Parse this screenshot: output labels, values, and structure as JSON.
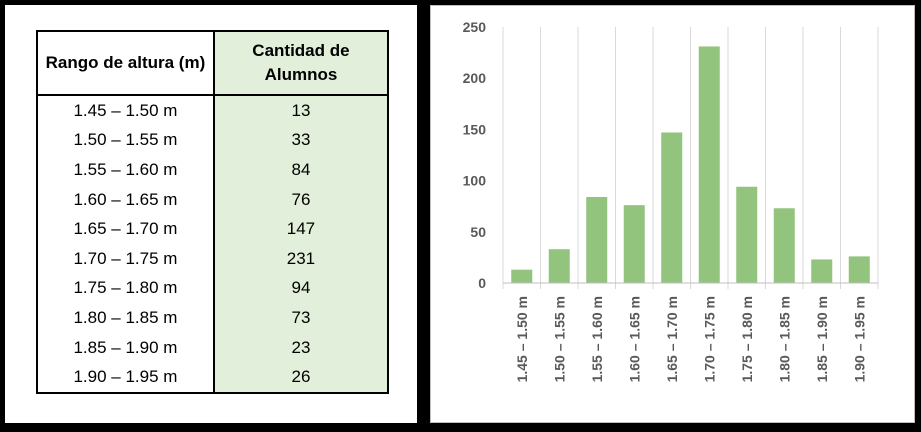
{
  "table": {
    "header_range": "Rango de altura (m)",
    "header_count": "Cantidad de Alumnos",
    "rows": [
      {
        "range": "1.45 – 1.50 m",
        "count": "13"
      },
      {
        "range": "1.50 – 1.55 m",
        "count": "33"
      },
      {
        "range": "1.55 – 1.60 m",
        "count": "84"
      },
      {
        "range": "1.60 – 1.65 m",
        "count": "76"
      },
      {
        "range": "1.65 – 1.70 m",
        "count": "147"
      },
      {
        "range": "1.70 – 1.75 m",
        "count": "231"
      },
      {
        "range": "1.75 – 1.80 m",
        "count": "94"
      },
      {
        "range": "1.80 – 1.85 m",
        "count": "73"
      },
      {
        "range": "1.85 – 1.90 m",
        "count": "23"
      },
      {
        "range": "1.90 – 1.95 m",
        "count": "26"
      }
    ]
  },
  "chart_data": {
    "type": "bar",
    "categories": [
      "1.45 – 1.50 m",
      "1.50 – 1.55 m",
      "1.55 – 1.60 m",
      "1.60 – 1.65 m",
      "1.65 – 1.70 m",
      "1.70 – 1.75 m",
      "1.75 – 1.80 m",
      "1.80 – 1.85 m",
      "1.85 – 1.90 m",
      "1.90 – 1.95 m"
    ],
    "values": [
      13,
      33,
      84,
      76,
      147,
      231,
      94,
      73,
      23,
      26
    ],
    "ylim": [
      0,
      250
    ],
    "yticks": [
      0,
      50,
      100,
      150,
      200,
      250
    ],
    "grid": "vertical",
    "bar_color": "#93c47d",
    "legend": "none"
  }
}
